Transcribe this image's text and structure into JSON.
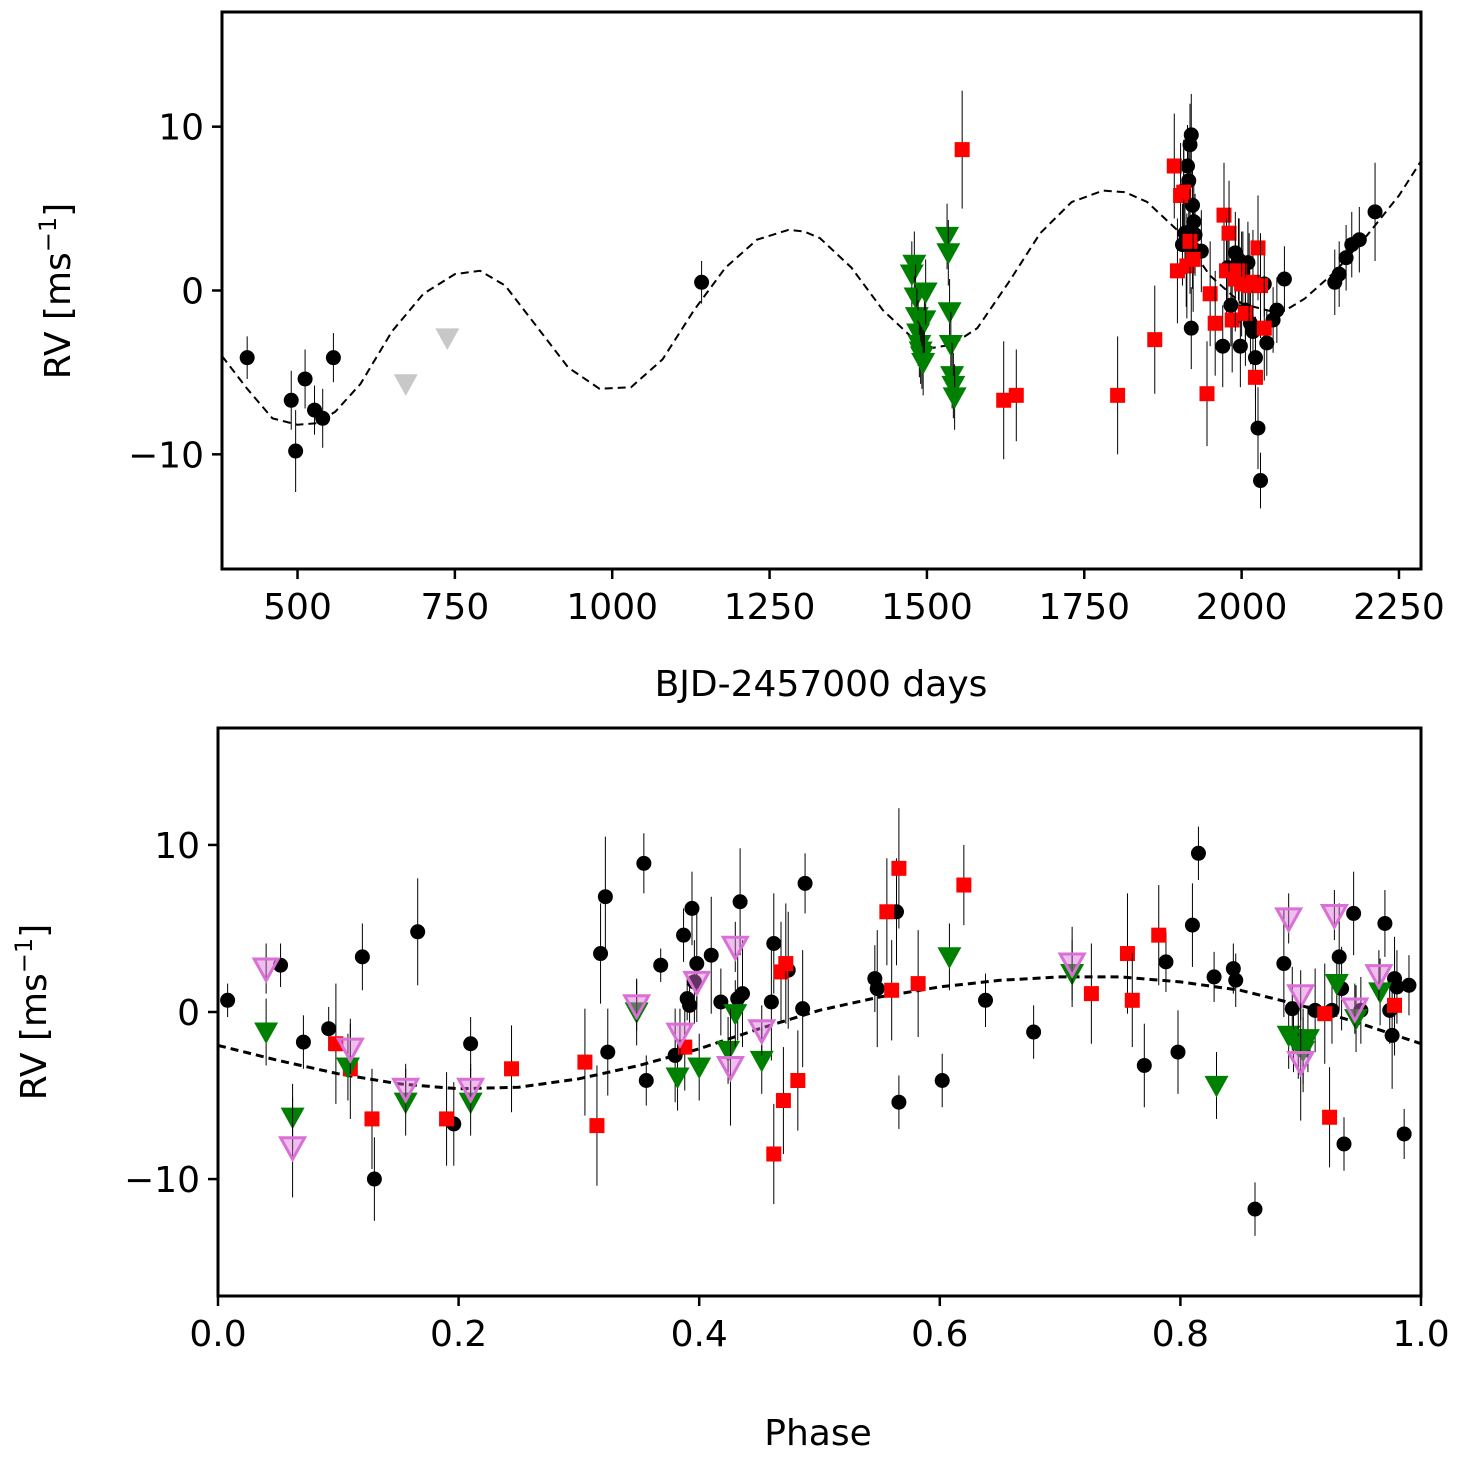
{
  "chart_data": [
    {
      "type": "scatter",
      "xlabel": "BJD-2457000 days",
      "ylabel": "RV [ms",
      "ylabel_exp": "−1",
      "ylabel_end": "]",
      "xlim": [
        380,
        2285
      ],
      "ylim": [
        -17,
        17
      ],
      "xticks": [
        500,
        750,
        1000,
        1250,
        1500,
        1750,
        2000,
        2250
      ],
      "xtick_labels": [
        "500",
        "750",
        "1000",
        "1250",
        "1500",
        "1750",
        "2000",
        "2250"
      ],
      "yticks": [
        -10,
        0,
        10
      ],
      "ytick_labels": [
        "−10",
        "0",
        "10"
      ],
      "grid": false,
      "model": {
        "style": "dashed",
        "color": "#000000",
        "x": [
          380,
          420,
          460,
          500,
          530,
          560,
          600,
          650,
          700,
          750,
          790,
          830,
          880,
          930,
          980,
          1030,
          1080,
          1130,
          1180,
          1230,
          1280,
          1305,
          1330,
          1380,
          1430,
          1480,
          1510,
          1540,
          1580,
          1630,
          1680,
          1730,
          1780,
          1815,
          1850,
          1900,
          1950,
          2000,
          2050,
          2070,
          2100,
          2150,
          2200,
          2250,
          2285
        ],
        "y": [
          -4,
          -6,
          -7.8,
          -8.2,
          -8.1,
          -7.4,
          -5.7,
          -2.5,
          -0.2,
          1.0,
          1.2,
          0.3,
          -2.2,
          -4.7,
          -6.0,
          -5.9,
          -4.2,
          -1.2,
          1.4,
          3.1,
          3.7,
          3.6,
          3.2,
          1.4,
          -1.2,
          -3.0,
          -3.5,
          -3.3,
          -2.3,
          0.5,
          3.5,
          5.4,
          6.1,
          6.0,
          5.4,
          3.6,
          0.9,
          -0.8,
          -1.3,
          -1.2,
          -0.5,
          1.2,
          3.4,
          5.8,
          7.9
        ]
      },
      "series": [
        {
          "marker": "circle",
          "color": "#000000",
          "x": [
            420,
            490,
            497,
            512,
            527,
            540,
            557,
            1142,
            1906,
            1910,
            1914,
            1916,
            1918,
            1920,
            1922,
            1924,
            1926,
            1908,
            1912,
            1920,
            1922,
            1936,
            1970,
            1978,
            1983,
            1990,
            1995,
            1998,
            2002,
            2006,
            2010,
            2014,
            2018,
            2022,
            2026,
            2030,
            2036,
            2040,
            2050,
            2056,
            2068,
            2148,
            2155,
            2166,
            2175,
            2187,
            2212
          ],
          "y": [
            -4.1,
            -6.7,
            -9.8,
            -5.4,
            -7.3,
            -7.8,
            -4.1,
            0.5,
            2.8,
            3.5,
            7.6,
            6.7,
            8.9,
            9.5,
            5.2,
            4.2,
            3.4,
            6.1,
            1.5,
            -2.3,
            2.6,
            2.4,
            -3.4,
            1.4,
            -0.9,
            2.3,
            1.9,
            -3.4,
            1.1,
            -1.2,
            1.7,
            -2.0,
            -2.5,
            -4.1,
            -8.4,
            -11.6,
            0.4,
            -3.2,
            -1.8,
            -1.2,
            0.7,
            0.5,
            1.0,
            2.0,
            2.8,
            3.1,
            4.8
          ],
          "err": [
            1.3,
            1.8,
            2.5,
            1.8,
            1.5,
            1.8,
            1.5,
            1.3,
            2.5,
            2.5,
            2.5,
            2.5,
            2.5,
            2.5,
            2.5,
            2.5,
            2.5,
            2.5,
            2.5,
            2.5,
            2.5,
            2.5,
            2.5,
            2.5,
            2.5,
            2.5,
            2.5,
            2.5,
            2.5,
            2.5,
            2.5,
            2.5,
            2.5,
            2.5,
            2.5,
            1.7,
            2.0,
            2.0,
            2.0,
            2.0,
            2.0,
            2.0,
            2.0,
            2.0,
            2.0,
            2.0,
            3.0
          ]
        },
        {
          "marker": "square",
          "color": "#ff0000",
          "x": [
            1556,
            1622,
            1642,
            1803,
            1862,
            1893,
            1898,
            1903,
            1908,
            1913,
            1918,
            1923,
            1945,
            1950,
            1958,
            1972,
            1976,
            1980,
            1985,
            1990,
            1996,
            2000,
            2006,
            2012,
            2018,
            2022,
            2026,
            2030,
            2036
          ],
          "y": [
            8.6,
            -6.7,
            -6.4,
            -6.4,
            -3.0,
            7.6,
            1.2,
            5.8,
            6.0,
            1.5,
            3.0,
            1.9,
            -6.3,
            -0.2,
            -2.0,
            4.6,
            1.2,
            3.5,
            -1.8,
            0.7,
            1.2,
            0.4,
            -1.4,
            0.3,
            0.5,
            -5.3,
            2.6,
            0.3,
            -2.3
          ],
          "err": [
            3.6,
            3.6,
            2.8,
            3.6,
            3.3,
            3.2,
            3.2,
            3.2,
            3.2,
            3.2,
            3.2,
            3.2,
            3.2,
            3.2,
            3.2,
            3.2,
            3.2,
            3.2,
            3.2,
            3.2,
            3.2,
            3.2,
            3.2,
            3.2,
            3.2,
            3.2,
            3.2,
            3.2,
            3.2
          ]
        },
        {
          "marker": "triangle-down",
          "color": "#008000",
          "x": [
            1476,
            1480,
            1482,
            1484,
            1486,
            1488,
            1490,
            1492,
            1494,
            1496,
            1498,
            1532,
            1534,
            1536,
            1538,
            1540,
            1542,
            1544
          ],
          "y": [
            1.0,
            1.6,
            -0.4,
            -1.6,
            -2.6,
            -3.3,
            -3.7,
            -4.0,
            -4.4,
            -1.8,
            -0.1,
            3.3,
            2.3,
            -1.3,
            -3.3,
            -5.2,
            -5.8,
            -6.5
          ],
          "err": [
            2.0,
            2.0,
            2.0,
            2.0,
            2.0,
            2.0,
            2.0,
            2.0,
            2.0,
            2.0,
            2.0,
            2.0,
            2.0,
            2.0,
            2.0,
            2.0,
            2.0,
            2.0
          ]
        },
        {
          "marker": "triangle-down",
          "color": "#c8c8c8",
          "x": [
            672,
            738
          ],
          "y": [
            -5.7,
            -2.9
          ],
          "err": [
            0,
            0
          ]
        }
      ]
    },
    {
      "type": "scatter",
      "xlabel": "Phase",
      "ylabel": "RV [ms",
      "ylabel_exp": "−1",
      "ylabel_end": "]",
      "xlim": [
        0.0,
        1.0
      ],
      "ylim": [
        -17,
        17
      ],
      "xticks": [
        0.0,
        0.2,
        0.4,
        0.6,
        0.8,
        1.0
      ],
      "xtick_labels": [
        "0.0",
        "0.2",
        "0.4",
        "0.6",
        "0.8",
        "1.0"
      ],
      "yticks": [
        -10,
        0,
        10
      ],
      "ytick_labels": [
        "−10",
        "0",
        "10"
      ],
      "grid": false,
      "model": {
        "style": "dashed",
        "color": "#000000",
        "x": [
          0.0,
          0.05,
          0.1,
          0.15,
          0.2,
          0.25,
          0.3,
          0.35,
          0.4,
          0.45,
          0.5,
          0.55,
          0.6,
          0.65,
          0.7,
          0.75,
          0.8,
          0.85,
          0.9,
          0.95,
          1.0
        ],
        "y": [
          -2.0,
          -2.9,
          -3.7,
          -4.3,
          -4.6,
          -4.5,
          -4.0,
          -3.2,
          -2.2,
          -1.0,
          0.1,
          0.9,
          1.5,
          1.9,
          2.1,
          2.1,
          1.8,
          1.3,
          0.4,
          -0.7,
          -1.9
        ]
      },
      "series": [
        {
          "marker": "circle",
          "color": "#000000",
          "x": [
            0.008,
            0.052,
            0.071,
            0.092,
            0.12,
            0.13,
            0.166,
            0.196,
            0.21,
            0.318,
            0.322,
            0.324,
            0.354,
            0.356,
            0.368,
            0.38,
            0.387,
            0.39,
            0.392,
            0.394,
            0.396,
            0.398,
            0.41,
            0.418,
            0.432,
            0.434,
            0.436,
            0.46,
            0.462,
            0.474,
            0.486,
            0.488,
            0.546,
            0.548,
            0.564,
            0.566,
            0.602,
            0.638,
            0.678,
            0.77,
            0.788,
            0.798,
            0.81,
            0.815,
            0.828,
            0.844,
            0.846,
            0.862,
            0.886,
            0.893,
            0.902,
            0.912,
            0.926,
            0.932,
            0.934,
            0.936,
            0.944,
            0.95,
            0.97,
            0.974,
            0.976,
            0.978,
            0.98,
            0.986,
            0.99
          ],
          "y": [
            0.7,
            2.8,
            -1.8,
            -1.0,
            3.3,
            -10.0,
            4.8,
            -6.7,
            -1.9,
            3.5,
            6.9,
            -2.4,
            8.9,
            -4.1,
            2.8,
            -2.6,
            4.6,
            0.8,
            0.4,
            6.2,
            1.8,
            2.9,
            3.4,
            0.6,
            0.8,
            6.6,
            1.1,
            0.6,
            4.1,
            2.5,
            0.2,
            7.7,
            2.0,
            1.4,
            6.0,
            -5.4,
            -4.1,
            0.7,
            -1.2,
            -3.2,
            3.0,
            -2.4,
            5.2,
            9.5,
            2.1,
            2.6,
            1.9,
            -11.8,
            2.9,
            0.2,
            -2.3,
            0.1,
            0.1,
            3.3,
            1.4,
            -7.9,
            5.9,
            0.1,
            5.3,
            0.1,
            -1.4,
            2.0,
            1.5,
            -7.3,
            1.6
          ],
          "err": [
            1.0,
            1.3,
            1.6,
            1.3,
            2.0,
            2.5,
            3.2,
            2.5,
            1.6,
            3.0,
            3.6,
            2.6,
            1.8,
            1.5,
            1.0,
            2.8,
            1.6,
            1.3,
            1.3,
            2.2,
            2.5,
            3.5,
            3.5,
            2.0,
            2.5,
            3.2,
            3.2,
            3.5,
            3.0,
            3.5,
            3.5,
            1.8,
            2.0,
            3.5,
            3.2,
            1.6,
            1.6,
            1.6,
            1.6,
            2.5,
            1.8,
            2.5,
            2.5,
            1.6,
            1.5,
            1.5,
            1.6,
            1.6,
            3.2,
            2.5,
            2.5,
            2.5,
            2.0,
            3.2,
            2.5,
            1.6,
            2.5,
            2.0,
            2.0,
            2.0,
            3.2,
            2.5,
            2.2,
            1.5,
            1.8
          ]
        },
        {
          "marker": "square",
          "color": "#ff0000",
          "x": [
            0.098,
            0.11,
            0.128,
            0.19,
            0.244,
            0.305,
            0.315,
            0.388,
            0.462,
            0.468,
            0.47,
            0.472,
            0.482,
            0.556,
            0.56,
            0.566,
            0.582,
            0.62,
            0.726,
            0.756,
            0.76,
            0.782,
            0.92,
            0.924,
            0.978
          ],
          "y": [
            -1.9,
            -3.4,
            -6.4,
            -6.4,
            -3.4,
            -3.0,
            -6.8,
            -2.1,
            -8.5,
            2.4,
            -5.3,
            2.9,
            -4.1,
            6.0,
            1.3,
            8.6,
            1.7,
            7.6,
            1.1,
            3.5,
            0.7,
            4.6,
            -0.1,
            -6.3,
            0.4
          ],
          "err": [
            3.6,
            3.0,
            3.0,
            2.8,
            2.6,
            3.2,
            3.6,
            2.6,
            3.0,
            3.0,
            3.2,
            3.6,
            3.0,
            3.2,
            3.0,
            3.6,
            3.2,
            2.4,
            3.0,
            3.6,
            2.8,
            3.0,
            3.0,
            3.0,
            3.0
          ]
        },
        {
          "marker": "triangle-down",
          "color": "#008000",
          "x": [
            0.04,
            0.062,
            0.108,
            0.156,
            0.21,
            0.348,
            0.382,
            0.4,
            0.424,
            0.43,
            0.452,
            0.608,
            0.71,
            0.83,
            0.89,
            0.894,
            0.898,
            0.902,
            0.906,
            0.93,
            0.946,
            0.966
          ],
          "y": [
            -1.2,
            -6.3,
            -3.3,
            -5.4,
            -5.4,
            0.0,
            -3.9,
            -3.3,
            -2.3,
            -0.1,
            -2.9,
            3.3,
            2.3,
            -4.4,
            -1.4,
            -1.6,
            -2.0,
            -2.3,
            -1.6,
            1.7,
            -0.4,
            1.2
          ],
          "err": [
            2.0,
            2.0,
            2.0,
            2.0,
            2.0,
            2.0,
            2.0,
            2.0,
            2.0,
            2.0,
            2.0,
            2.0,
            2.0,
            2.0,
            2.0,
            2.0,
            2.0,
            2.0,
            2.0,
            2.0,
            2.0,
            2.0
          ]
        },
        {
          "marker": "triangle-down-open",
          "color": "#da70d6",
          "x": [
            0.04,
            0.062,
            0.11,
            0.156,
            0.21,
            0.348,
            0.384,
            0.398,
            0.426,
            0.43,
            0.452,
            0.71,
            0.89,
            0.9,
            0.9,
            0.928,
            0.945,
            0.965
          ],
          "y": [
            2.6,
            -8.1,
            -2.2,
            -4.6,
            -4.6,
            0.4,
            -1.3,
            1.8,
            -3.3,
            3.9,
            -1.1,
            2.9,
            5.6,
            1.0,
            -3.0,
            5.8,
            0.2,
            2.2
          ],
          "err": [
            1.5,
            3.0,
            1.5,
            1.5,
            1.5,
            1.5,
            1.5,
            1.5,
            3.5,
            1.5,
            1.5,
            2.2,
            1.5,
            1.5,
            3.5,
            1.5,
            1.5,
            1.5
          ]
        }
      ]
    }
  ]
}
